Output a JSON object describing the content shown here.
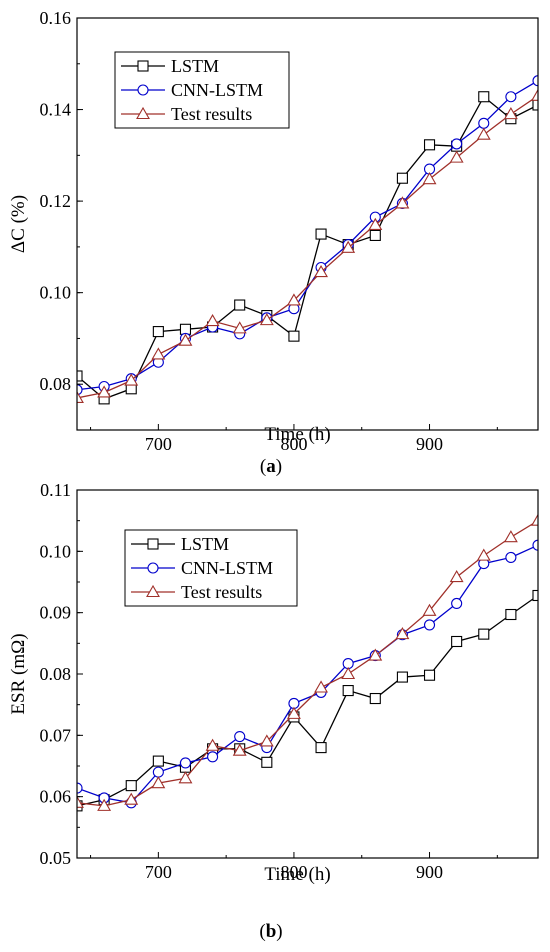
{
  "chart_data": [
    {
      "type": "line",
      "xlabel": "Time (h)",
      "ylabel": "ΔC (%)",
      "caption_letter": "a",
      "xlim": [
        640,
        980
      ],
      "ylim": [
        0.07,
        0.16
      ],
      "xticks": [
        700,
        800,
        900
      ],
      "yticks": [
        0.08,
        0.1,
        0.12,
        0.14,
        0.16
      ],
      "ytick_labels": [
        "0.08",
        "0.10",
        "0.12",
        "0.14",
        "0.16"
      ],
      "legend_position": "top-left",
      "x": [
        640,
        660,
        680,
        700,
        720,
        740,
        760,
        780,
        800,
        820,
        840,
        860,
        880,
        900,
        920,
        940,
        960,
        980
      ],
      "series": [
        {
          "name": "LSTM",
          "marker": "square",
          "color": "#000000",
          "values": [
            0.0818,
            0.0768,
            0.079,
            0.0915,
            0.092,
            0.0925,
            0.0973,
            0.095,
            0.0905,
            0.1128,
            0.1105,
            0.1125,
            0.125,
            0.1323,
            0.132,
            0.1428,
            0.138,
            0.141
          ]
        },
        {
          "name": "CNN-LSTM",
          "marker": "circle",
          "color": "#0000cc",
          "values": [
            0.0788,
            0.0795,
            0.0812,
            0.0848,
            0.09,
            0.0925,
            0.091,
            0.0945,
            0.0965,
            0.1055,
            0.1105,
            0.1165,
            0.1195,
            0.127,
            0.1325,
            0.137,
            0.1428,
            0.1463
          ]
        },
        {
          "name": "Test results",
          "marker": "triangle",
          "color": "#a0302a",
          "values": [
            0.077,
            0.0782,
            0.0808,
            0.0865,
            0.0895,
            0.0938,
            0.0922,
            0.094,
            0.0983,
            0.1045,
            0.1098,
            0.1148,
            0.1195,
            0.1248,
            0.1295,
            0.1345,
            0.139,
            0.143
          ]
        }
      ]
    },
    {
      "type": "line",
      "xlabel": "Time (h)",
      "ylabel": "ESR (mΩ)",
      "caption_letter": "b",
      "xlim": [
        640,
        980
      ],
      "ylim": [
        0.05,
        0.11
      ],
      "xticks": [
        700,
        800,
        900
      ],
      "yticks": [
        0.05,
        0.06,
        0.07,
        0.08,
        0.09,
        0.1,
        0.11
      ],
      "ytick_labels": [
        "0.05",
        "0.06",
        "0.07",
        "0.08",
        "0.09",
        "0.10",
        "0.11"
      ],
      "legend_position": "top-left",
      "x": [
        640,
        660,
        680,
        700,
        720,
        740,
        760,
        780,
        800,
        820,
        840,
        860,
        880,
        900,
        920,
        940,
        960,
        980
      ],
      "series": [
        {
          "name": "LSTM",
          "marker": "square",
          "color": "#000000",
          "values": [
            0.0585,
            0.0595,
            0.0618,
            0.0658,
            0.0648,
            0.0678,
            0.0678,
            0.0656,
            0.073,
            0.068,
            0.0773,
            0.076,
            0.0795,
            0.0798,
            0.0853,
            0.0865,
            0.0897,
            0.0928
          ]
        },
        {
          "name": "CNN-LSTM",
          "marker": "circle",
          "color": "#0000cc",
          "values": [
            0.0614,
            0.0598,
            0.059,
            0.064,
            0.0655,
            0.0665,
            0.0698,
            0.068,
            0.0752,
            0.077,
            0.0817,
            0.083,
            0.0864,
            0.088,
            0.0915,
            0.098,
            0.099,
            0.101
          ]
        },
        {
          "name": "Test results",
          "marker": "triangle",
          "color": "#a0302a",
          "values": [
            0.059,
            0.0585,
            0.0595,
            0.0622,
            0.063,
            0.0683,
            0.0675,
            0.069,
            0.0735,
            0.0778,
            0.08,
            0.083,
            0.0865,
            0.0903,
            0.0958,
            0.0993,
            0.1023,
            0.105
          ]
        }
      ]
    }
  ]
}
